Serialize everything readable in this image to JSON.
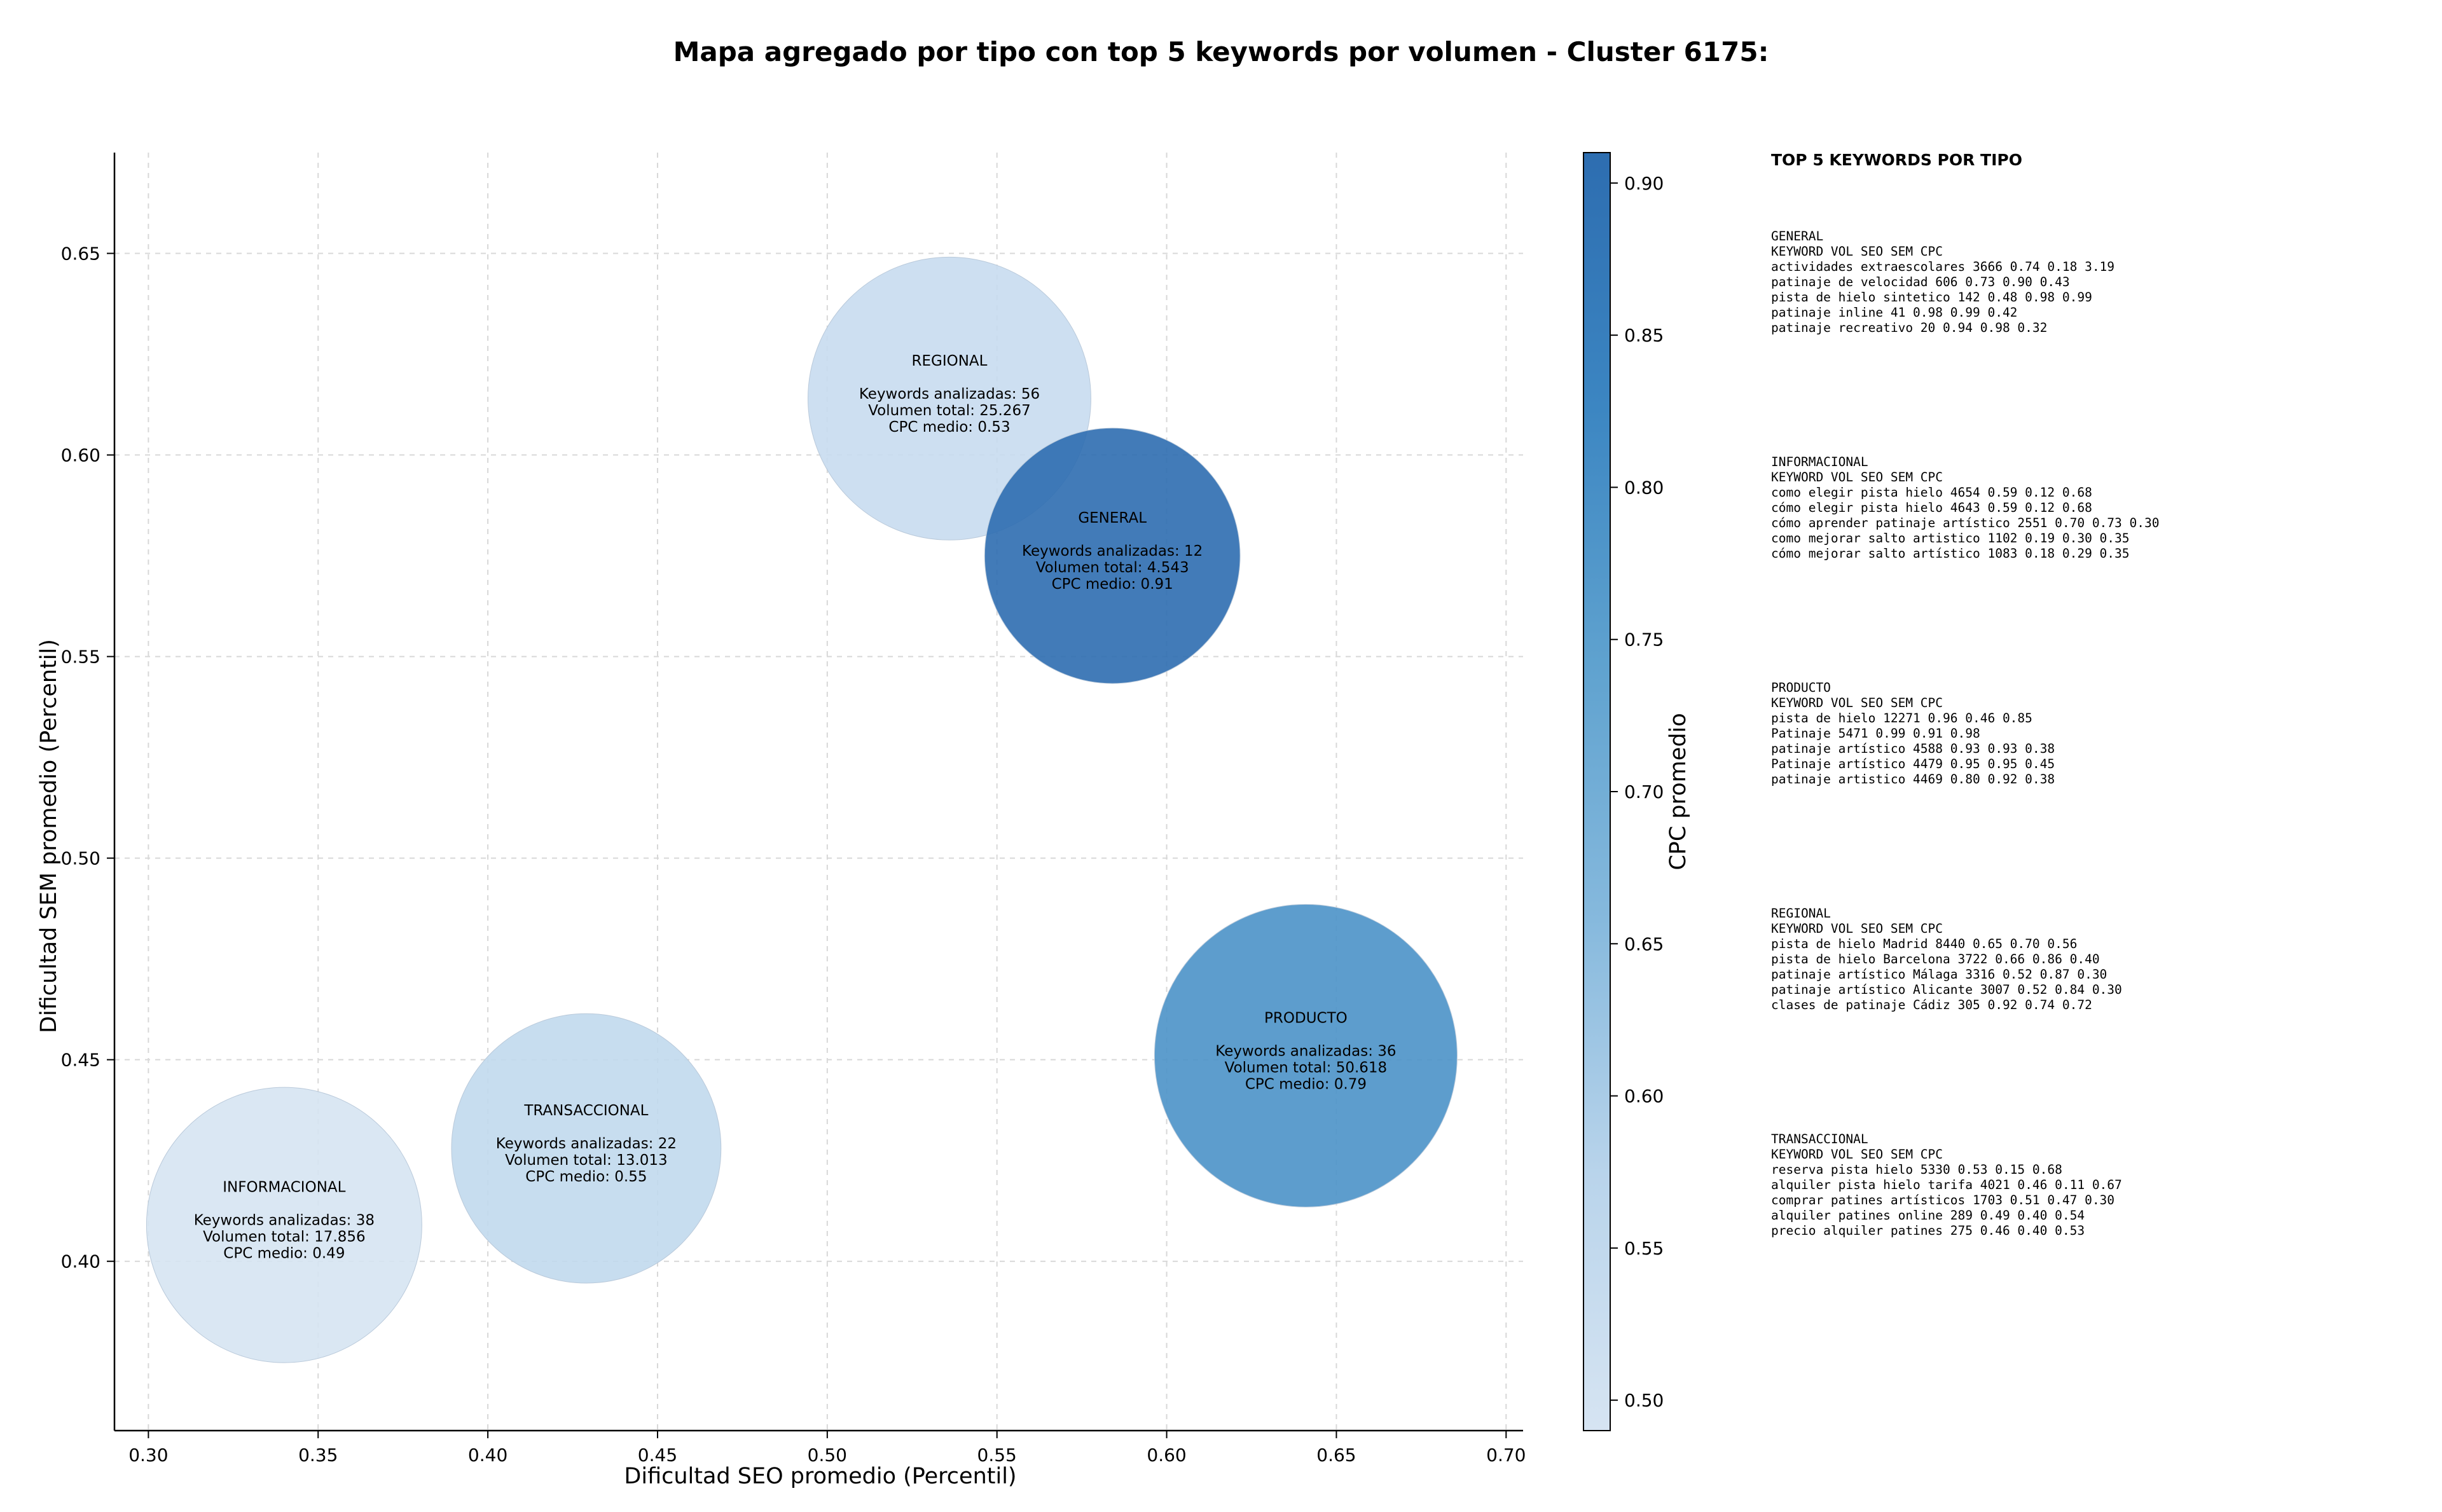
{
  "chart_data": {
    "type": "scatter",
    "title": "Mapa agregado por tipo con top 5 keywords por volumen - Cluster 6175:",
    "xlabel": "Dificultad SEO promedio (Percentil)",
    "ylabel": "Dificultad SEM promedio (Percentil)",
    "xlim": [
      0.29,
      0.705
    ],
    "ylim": [
      0.358,
      0.675
    ],
    "xticks": [
      "0.30",
      "0.35",
      "0.40",
      "0.45",
      "0.50",
      "0.55",
      "0.60",
      "0.65",
      "0.70"
    ],
    "yticks": [
      "0.40",
      "0.45",
      "0.50",
      "0.55",
      "0.60",
      "0.65"
    ],
    "grid": true,
    "colorbar": {
      "label": "CPC promedio",
      "min": 0.49,
      "max": 0.91,
      "ticks": [
        "0.50",
        "0.55",
        "0.60",
        "0.65",
        "0.70",
        "0.75",
        "0.80",
        "0.85",
        "0.90"
      ],
      "colors": [
        "#d6e4f2",
        "#b9d4eb",
        "#86b9dd",
        "#5fa2cf",
        "#3c86c2",
        "#2d6db0"
      ]
    },
    "bubbles": [
      {
        "name": "REGIONAL",
        "x": 0.536,
        "y": 0.614,
        "keywords_label": "Keywords analizadas: 56",
        "volume_label": "Volumen total: 25.267",
        "cpc_label": "CPC medio: 0.53",
        "volume": 25267,
        "cpc": 0.53
      },
      {
        "name": "GENERAL",
        "x": 0.584,
        "y": 0.575,
        "keywords_label": "Keywords analizadas: 12",
        "volume_label": "Volumen total: 4.543",
        "cpc_label": "CPC medio: 0.91",
        "volume": 4543,
        "cpc": 0.91
      },
      {
        "name": "PRODUCTO",
        "x": 0.641,
        "y": 0.451,
        "keywords_label": "Keywords analizadas: 36",
        "volume_label": "Volumen total: 50.618",
        "cpc_label": "CPC medio: 0.79",
        "volume": 50618,
        "cpc": 0.79
      },
      {
        "name": "TRANSACCIONAL",
        "x": 0.429,
        "y": 0.428,
        "keywords_label": "Keywords analizadas: 22",
        "volume_label": "Volumen total: 13.013",
        "cpc_label": "CPC medio: 0.55",
        "volume": 13013,
        "cpc": 0.55
      },
      {
        "name": "INFORMACIONAL",
        "x": 0.34,
        "y": 0.409,
        "keywords_label": "Keywords analizadas: 38",
        "volume_label": "Volumen total: 17.856",
        "cpc_label": "CPC medio: 0.49",
        "volume": 17856,
        "cpc": 0.49
      }
    ]
  },
  "panel": {
    "heading": "TOP 5 KEYWORDS POR TIPO",
    "blocks": [
      {
        "name": "GENERAL",
        "header": "KEYWORD                        VOL    SEO    SEM      CPC",
        "rows": [
          "actividades extraescolares    3666   0.74   0.18     3.19",
          "patinaje de velocidad          606   0.73   0.90     0.43",
          "pista de hielo sintetico       142   0.48   0.98     0.99",
          "patinaje inline                 41   0.98   0.99     0.42",
          "patinaje recreativo             20   0.94   0.98     0.32"
        ]
      },
      {
        "name": "INFORMACIONAL",
        "header": "KEYWORD                              VOL    SEO    SEM      CPC",
        "rows": [
          "como elegir pista hielo             4654   0.59   0.12     0.68",
          "cómo elegir pista hielo             4643   0.59   0.12     0.68",
          "cómo aprender patinaje artístico    2551   0.70   0.73     0.30",
          "como mejorar salto artistico        1102   0.19   0.30     0.35",
          "cómo mejorar salto artístico        1083   0.18   0.29     0.35"
        ]
      },
      {
        "name": "PRODUCTO",
        "header": "KEYWORD               VOL    SEO    SEM      CPC",
        "rows": [
          "pista de hielo       12271   0.96   0.46     0.85",
          "Patinaje              5471   0.99   0.91     0.98",
          "patinaje artístico    4588   0.93   0.93     0.38",
          "Patinaje artístico    4479   0.95   0.95     0.45",
          "patinaje artistico    4469   0.80   0.92     0.38"
        ]
      },
      {
        "name": "REGIONAL",
        "header": "KEYWORD                         VOL    SEO    SEM      CPC",
        "rows": [
          "pista de hielo Madrid          8440   0.65   0.70     0.56",
          "pista de hielo Barcelona       3722   0.66   0.86     0.40",
          "patinaje artístico Málaga      3316   0.52   0.87     0.30",
          "patinaje artístico Alicante    3007   0.52   0.84     0.30",
          "clases de patinaje Cádiz        305   0.92   0.74     0.72"
        ]
      },
      {
        "name": "TRANSACCIONAL",
        "header": "KEYWORD                         VOL    SEO    SEM      CPC",
        "rows": [
          "reserva pista hielo            5330   0.53   0.15     0.68",
          "alquiler pista hielo tarifa    4021   0.46   0.11     0.67",
          "comprar patines artísticos     1703   0.51   0.47     0.30",
          "alquiler patines online         289   0.49   0.40     0.54",
          "precio alquiler patines         275   0.46   0.40     0.53"
        ]
      }
    ]
  }
}
